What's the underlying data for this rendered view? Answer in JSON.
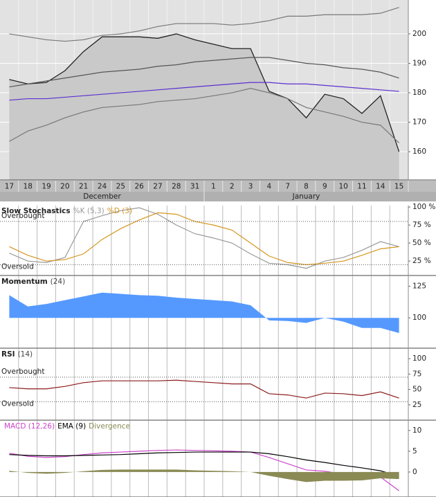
{
  "chart_data": [
    {
      "type": "line",
      "grid": true,
      "categories": [
        "17",
        "18",
        "19",
        "20",
        "21",
        "24",
        "25",
        "26",
        "27",
        "28",
        "31",
        "1",
        "2",
        "3",
        "4",
        "7",
        "8",
        "9",
        "10",
        "11",
        "14",
        "15"
      ],
      "months": [
        "December",
        "January"
      ],
      "ylim": [
        150.4,
        211.5
      ],
      "yticks": [
        160,
        170,
        180,
        190,
        200
      ],
      "series": [
        {
          "style": "area",
          "color": "#222222",
          "fill": "#c9c9c9",
          "values": [
            184.5,
            183,
            183.5,
            187.5,
            194,
            199,
            199,
            199,
            198.5,
            200,
            198,
            196.5,
            195,
            195,
            180.5,
            178,
            171.5,
            179.5,
            178,
            173,
            179,
            160
          ]
        },
        {
          "style": "line",
          "color": "#777777",
          "values": [
            200,
            199,
            198,
            197.5,
            198,
            199.5,
            200,
            201,
            202.5,
            203.5,
            203.5,
            203.5,
            203,
            203.5,
            204.5,
            206,
            206,
            206.5,
            206.5,
            206.5,
            207,
            209
          ]
        },
        {
          "style": "line",
          "color": "#555555",
          "values": [
            182,
            183,
            184,
            185,
            186,
            187,
            187.5,
            188,
            189,
            189.5,
            190.5,
            191,
            191.5,
            192,
            192,
            191,
            190,
            189.5,
            188.5,
            188,
            187,
            185
          ]
        },
        {
          "style": "line",
          "color": "#777777",
          "values": [
            163.5,
            167,
            169,
            171.5,
            173.5,
            175,
            175.5,
            176,
            177,
            177.5,
            178,
            179,
            180,
            181.5,
            180,
            178,
            175,
            173.5,
            172,
            170,
            169,
            163
          ]
        },
        {
          "style": "line",
          "color": "#5a2fd0",
          "values": [
            177.5,
            178,
            178,
            178.5,
            179,
            179.5,
            180,
            180.5,
            181,
            181.5,
            182,
            182.5,
            183,
            183.5,
            183.5,
            183,
            183,
            182.5,
            182,
            181.5,
            181,
            180.5
          ]
        }
      ]
    },
    {
      "type": "line",
      "title": "Slow Stochastics",
      "ylim": [
        5,
        102
      ],
      "yticks": [
        {
          "value": 25,
          "label": "25 %"
        },
        {
          "value": 50,
          "label": "50 %"
        },
        {
          "value": 75,
          "label": "75 %"
        },
        {
          "value": 100,
          "label": "100 %"
        }
      ],
      "levels": [
        {
          "value": 80,
          "label": "Overbought"
        },
        {
          "value": 20,
          "label": "Oversold"
        }
      ],
      "series": [
        {
          "name": "%K (5,3)",
          "style": "line",
          "color": "#999999",
          "values": [
            36,
            25,
            23,
            30,
            80,
            88,
            95,
            99,
            90,
            75,
            63,
            57,
            50,
            35,
            22,
            20,
            15,
            25,
            30,
            40,
            52,
            45
          ]
        },
        {
          "name": "%D (3)",
          "style": "line",
          "color": "#d4961e",
          "values": [
            45,
            33,
            25,
            27,
            35,
            55,
            70,
            82,
            92,
            90,
            80,
            75,
            68,
            50,
            32,
            23,
            20,
            22,
            25,
            33,
            42,
            45
          ]
        }
      ]
    },
    {
      "type": "line",
      "title": "Momentum",
      "ylim": [
        76,
        133
      ],
      "yticks": [
        100,
        125
      ],
      "baseline": 100,
      "series": [
        {
          "name": "(24)",
          "style": "area",
          "color": "#5599ff",
          "fill": "#5599ff",
          "values": [
            118,
            109,
            111,
            114,
            117,
            120,
            119,
            118,
            117.5,
            116,
            115,
            114,
            113,
            110,
            98,
            97.5,
            96,
            100,
            97,
            92,
            92,
            88
          ]
        }
      ]
    },
    {
      "type": "line",
      "title": "RSI",
      "ylim": [
        0,
        116
      ],
      "yticks": [
        25,
        50,
        75,
        100
      ],
      "levels": [
        {
          "value": 70,
          "label": "Overbought"
        },
        {
          "value": 30,
          "label": "Oversold"
        }
      ],
      "series": [
        {
          "name": "(14)",
          "style": "line",
          "color": "#8b1a1a",
          "values": [
            53,
            51,
            51,
            55,
            61,
            64,
            64,
            64,
            64,
            65,
            63,
            61,
            59,
            59,
            43,
            41,
            36,
            44,
            43,
            40,
            46,
            36
          ]
        }
      ]
    },
    {
      "type": "line",
      "ylim": [
        -6,
        12.3
      ],
      "yticks": [
        0,
        5,
        10
      ],
      "baseline": 0,
      "series": [
        {
          "name": "MACD (12,26)",
          "style": "line",
          "color": "#cc44cc",
          "values": [
            4.5,
            3.8,
            3.5,
            3.7,
            4.2,
            4.6,
            4.8,
            5,
            5.2,
            5.3,
            5.2,
            5.1,
            5,
            4.8,
            3.5,
            2,
            0.5,
            0.2,
            -0.5,
            -1,
            -1.2,
            -4.5
          ]
        },
        {
          "name": "EMA (9)",
          "style": "line",
          "color": "#000000",
          "values": [
            4.2,
            4,
            3.9,
            3.9,
            4,
            4.1,
            4.2,
            4.4,
            4.6,
            4.7,
            4.8,
            4.8,
            4.8,
            4.8,
            4.4,
            3.7,
            2.9,
            2.3,
            1.6,
            1,
            0.3,
            -1
          ]
        },
        {
          "name": "Divergence",
          "style": "area",
          "color": "#8a8a55",
          "fill": "#8a8a55",
          "values": [
            0.3,
            -0.2,
            -0.4,
            -0.2,
            0.2,
            0.5,
            0.6,
            0.6,
            0.6,
            0.6,
            0.4,
            0.3,
            0.2,
            0,
            -0.9,
            -1.7,
            -2.4,
            -2.1,
            -2.1,
            -2,
            -1.5,
            -1.7
          ]
        }
      ]
    }
  ]
}
